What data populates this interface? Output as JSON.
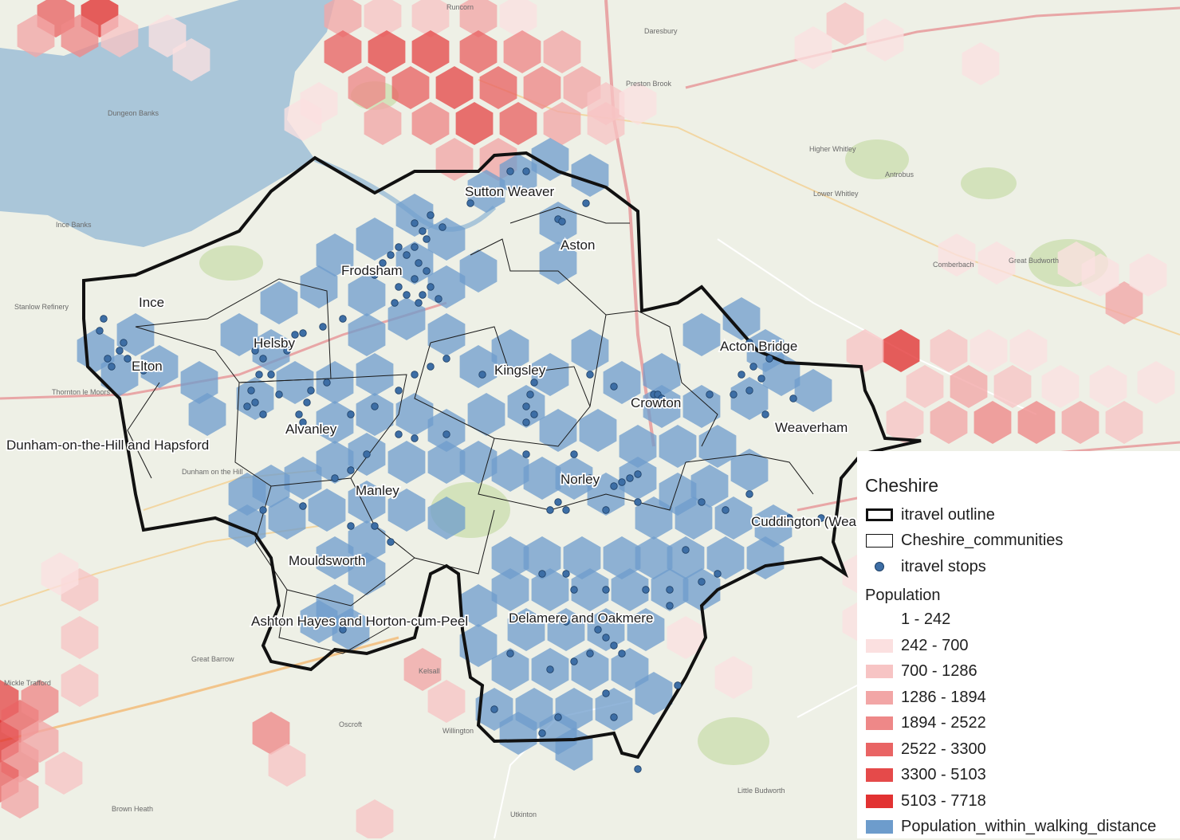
{
  "legend": {
    "title": "Cheshire",
    "outline_label": "itravel outline",
    "communities_label": "Cheshire_communities",
    "stops_label": "itravel stops",
    "population_heading": "Population",
    "population_classes": [
      {
        "label": "1 - 242",
        "color": "#ffffff"
      },
      {
        "label": "242 - 700",
        "color": "#fbe0e0"
      },
      {
        "label": "700 - 1286",
        "color": "#f7c4c4"
      },
      {
        "label": "1286 - 1894",
        "color": "#f2a6a6"
      },
      {
        "label": "1894 - 2522",
        "color": "#ee8888"
      },
      {
        "label": "2522 - 3300",
        "color": "#e96464"
      },
      {
        "label": "3300 - 5103",
        "color": "#e54a4a"
      },
      {
        "label": "5103 - 7718",
        "color": "#e23232"
      }
    ],
    "walking_label": "Population_within_walking_distance",
    "walking_color": "#6d9ccc"
  },
  "communities": [
    "Sutton Weaver",
    "Aston",
    "Frodsham",
    "Ince",
    "Helsby",
    "Elton",
    "Kingsley",
    "Acton Bridge",
    "Crowton",
    "Weaverham",
    "Alvanley",
    "Dunham-on-the-Hill and Hapsford",
    "Manley",
    "Norley",
    "Cuddington (Wea",
    "Mouldsworth",
    "Ashton Hayes and Horton-cum-Peel",
    "Delamere and Oakmere"
  ],
  "basemap_labels": [
    "Runcorn",
    "Dungeon Banks",
    "Ince Banks",
    "Stanlow Refinery",
    "Daresbury",
    "Preston Brook",
    "Higher Whitley",
    "Antrobus",
    "Lower Whitley",
    "Great Budworth",
    "Comberbach",
    "Thornton le Moors",
    "Dunham on the Hill",
    "Oscroft",
    "Willington",
    "Utkinton",
    "Little Budworth",
    "Brown Heath",
    "Kelsall",
    "Great Barrow",
    "Mickle Trafford"
  ],
  "colors": {
    "outline": "#111111",
    "stops": "#3d6ea5",
    "water": "#aac6d9",
    "land": "#eef0e6"
  }
}
